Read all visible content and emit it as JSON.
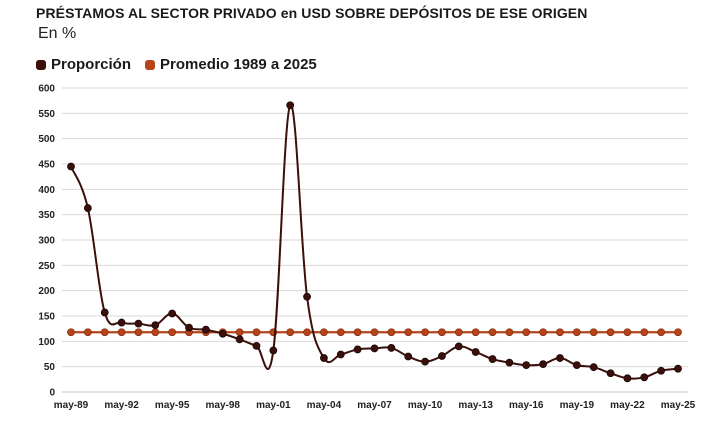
{
  "chart_data": {
    "type": "line",
    "title": "PRÉSTAMOS AL SECTOR PRIVADO en USD SOBRE DEPÓSITOS DE ESE ORIGEN",
    "subtitle": "En %",
    "xlabel": "",
    "ylabel": "",
    "ylim": [
      0,
      600
    ],
    "y_ticks": [
      0,
      50,
      100,
      150,
      200,
      250,
      300,
      350,
      400,
      450,
      500,
      550,
      600
    ],
    "x_ticks": [
      "may-89",
      "may-92",
      "may-95",
      "may-98",
      "may-01",
      "may-04",
      "may-07",
      "may-10",
      "may-13",
      "may-16",
      "may-19",
      "may-22",
      "may-25"
    ],
    "grid": true,
    "legend_position": "top-left",
    "categories": [
      "may-89",
      "may-90",
      "may-91",
      "may-92",
      "may-93",
      "may-94",
      "may-95",
      "may-96",
      "may-97",
      "may-98",
      "may-99",
      "may-00",
      "may-01",
      "may-02",
      "may-03",
      "may-04",
      "may-05",
      "may-06",
      "may-07",
      "may-08",
      "may-09",
      "may-10",
      "may-11",
      "may-12",
      "may-13",
      "may-14",
      "may-15",
      "may-16",
      "may-17",
      "may-18",
      "may-19",
      "may-20",
      "may-21",
      "may-22",
      "may-23",
      "may-24",
      "may-25"
    ],
    "series": [
      {
        "name": "Proporción",
        "color": "#3b0f0a",
        "values": [
          445,
          363,
          157,
          137,
          135,
          132,
          155,
          127,
          123,
          115,
          104,
          91,
          82,
          566,
          188,
          67,
          74,
          84,
          86,
          87,
          70,
          60,
          71,
          90,
          79,
          65,
          58,
          53,
          55,
          67,
          53,
          49,
          37,
          27,
          29,
          42,
          46
        ]
      },
      {
        "name": "Promedio 1989 a 2025",
        "color": "#b5441b",
        "values": [
          118,
          118,
          118,
          118,
          118,
          118,
          118,
          118,
          118,
          118,
          118,
          118,
          118,
          118,
          118,
          118,
          118,
          118,
          118,
          118,
          118,
          118,
          118,
          118,
          118,
          118,
          118,
          118,
          118,
          118,
          118,
          118,
          118,
          118,
          118,
          118,
          118
        ]
      }
    ]
  }
}
